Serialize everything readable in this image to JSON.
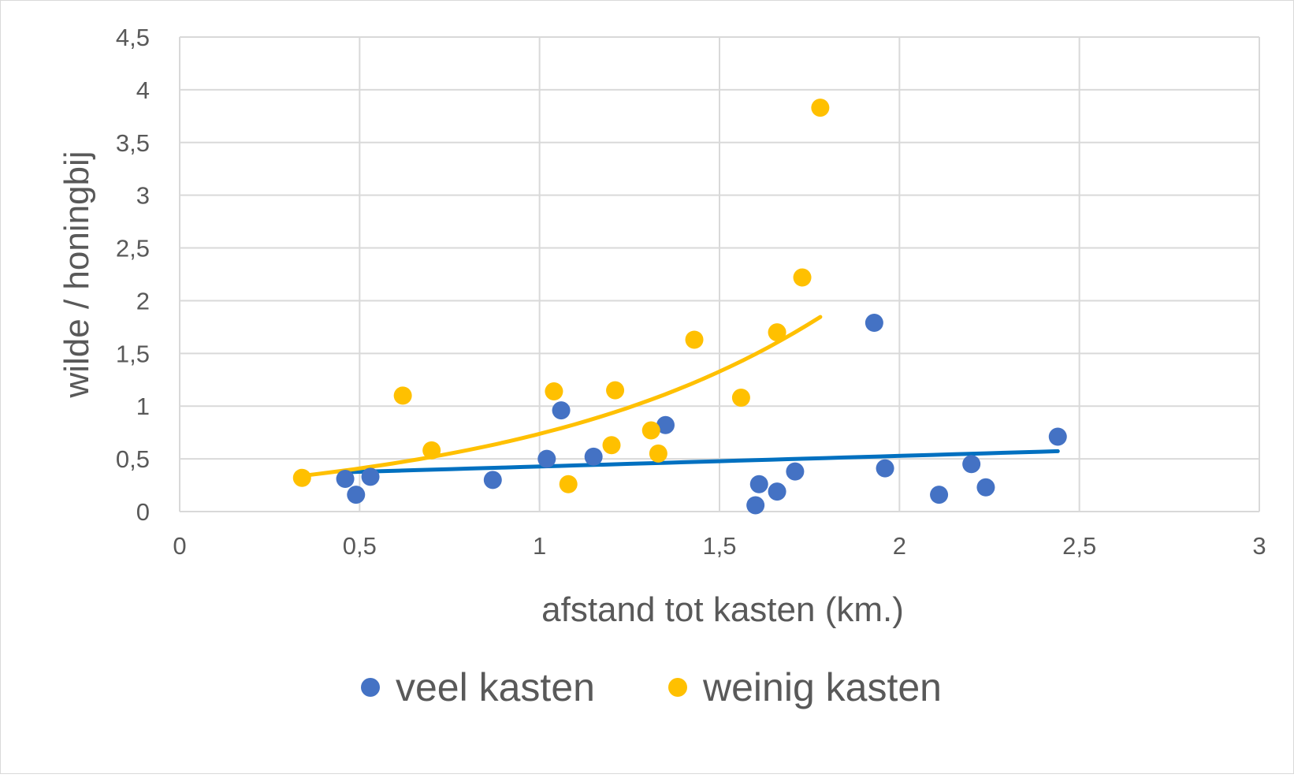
{
  "chart_data": {
    "type": "scatter",
    "title": "",
    "xlabel": "afstand tot kasten (km.)",
    "ylabel": "wilde / honingbij",
    "xlim": [
      0,
      3
    ],
    "ylim": [
      0,
      4.5
    ],
    "x_ticks": [
      0,
      0.5,
      1,
      1.5,
      2,
      2.5,
      3
    ],
    "x_tick_labels": [
      "0",
      "0,5",
      "1",
      "1,5",
      "2",
      "2,5",
      "3"
    ],
    "y_ticks": [
      0,
      0.5,
      1,
      1.5,
      2,
      2.5,
      3,
      3.5,
      4,
      4.5
    ],
    "y_tick_labels": [
      "0",
      "0,5",
      "1",
      "1,5",
      "2",
      "2,5",
      "3",
      "3,5",
      "4",
      "4,5"
    ],
    "grid": true,
    "legend_position": "bottom",
    "series": [
      {
        "name": "veel kasten",
        "color": "#4472C4",
        "trendline_color": "#0070C0",
        "trendline": "linear",
        "points": [
          [
            0.46,
            0.31
          ],
          [
            0.49,
            0.16
          ],
          [
            0.53,
            0.33
          ],
          [
            0.87,
            0.3
          ],
          [
            1.02,
            0.5
          ],
          [
            1.06,
            0.96
          ],
          [
            1.15,
            0.52
          ],
          [
            1.35,
            0.82
          ],
          [
            1.6,
            0.06
          ],
          [
            1.61,
            0.26
          ],
          [
            1.66,
            0.19
          ],
          [
            1.71,
            0.38
          ],
          [
            1.93,
            1.79
          ],
          [
            1.96,
            0.41
          ],
          [
            2.11,
            0.16
          ],
          [
            2.2,
            0.45
          ],
          [
            2.24,
            0.23
          ],
          [
            2.44,
            0.71
          ]
        ]
      },
      {
        "name": "weinig kasten",
        "color": "#FFC000",
        "trendline_color": "#FFC000",
        "trendline": "exponential",
        "points": [
          [
            0.34,
            0.32
          ],
          [
            0.62,
            1.1
          ],
          [
            0.7,
            0.58
          ],
          [
            1.04,
            1.14
          ],
          [
            1.08,
            0.26
          ],
          [
            1.2,
            0.63
          ],
          [
            1.21,
            1.15
          ],
          [
            1.31,
            0.77
          ],
          [
            1.33,
            0.55
          ],
          [
            1.43,
            1.63
          ],
          [
            1.56,
            1.08
          ],
          [
            1.66,
            1.7
          ],
          [
            1.73,
            2.22
          ],
          [
            1.78,
            3.83
          ]
        ]
      }
    ]
  }
}
